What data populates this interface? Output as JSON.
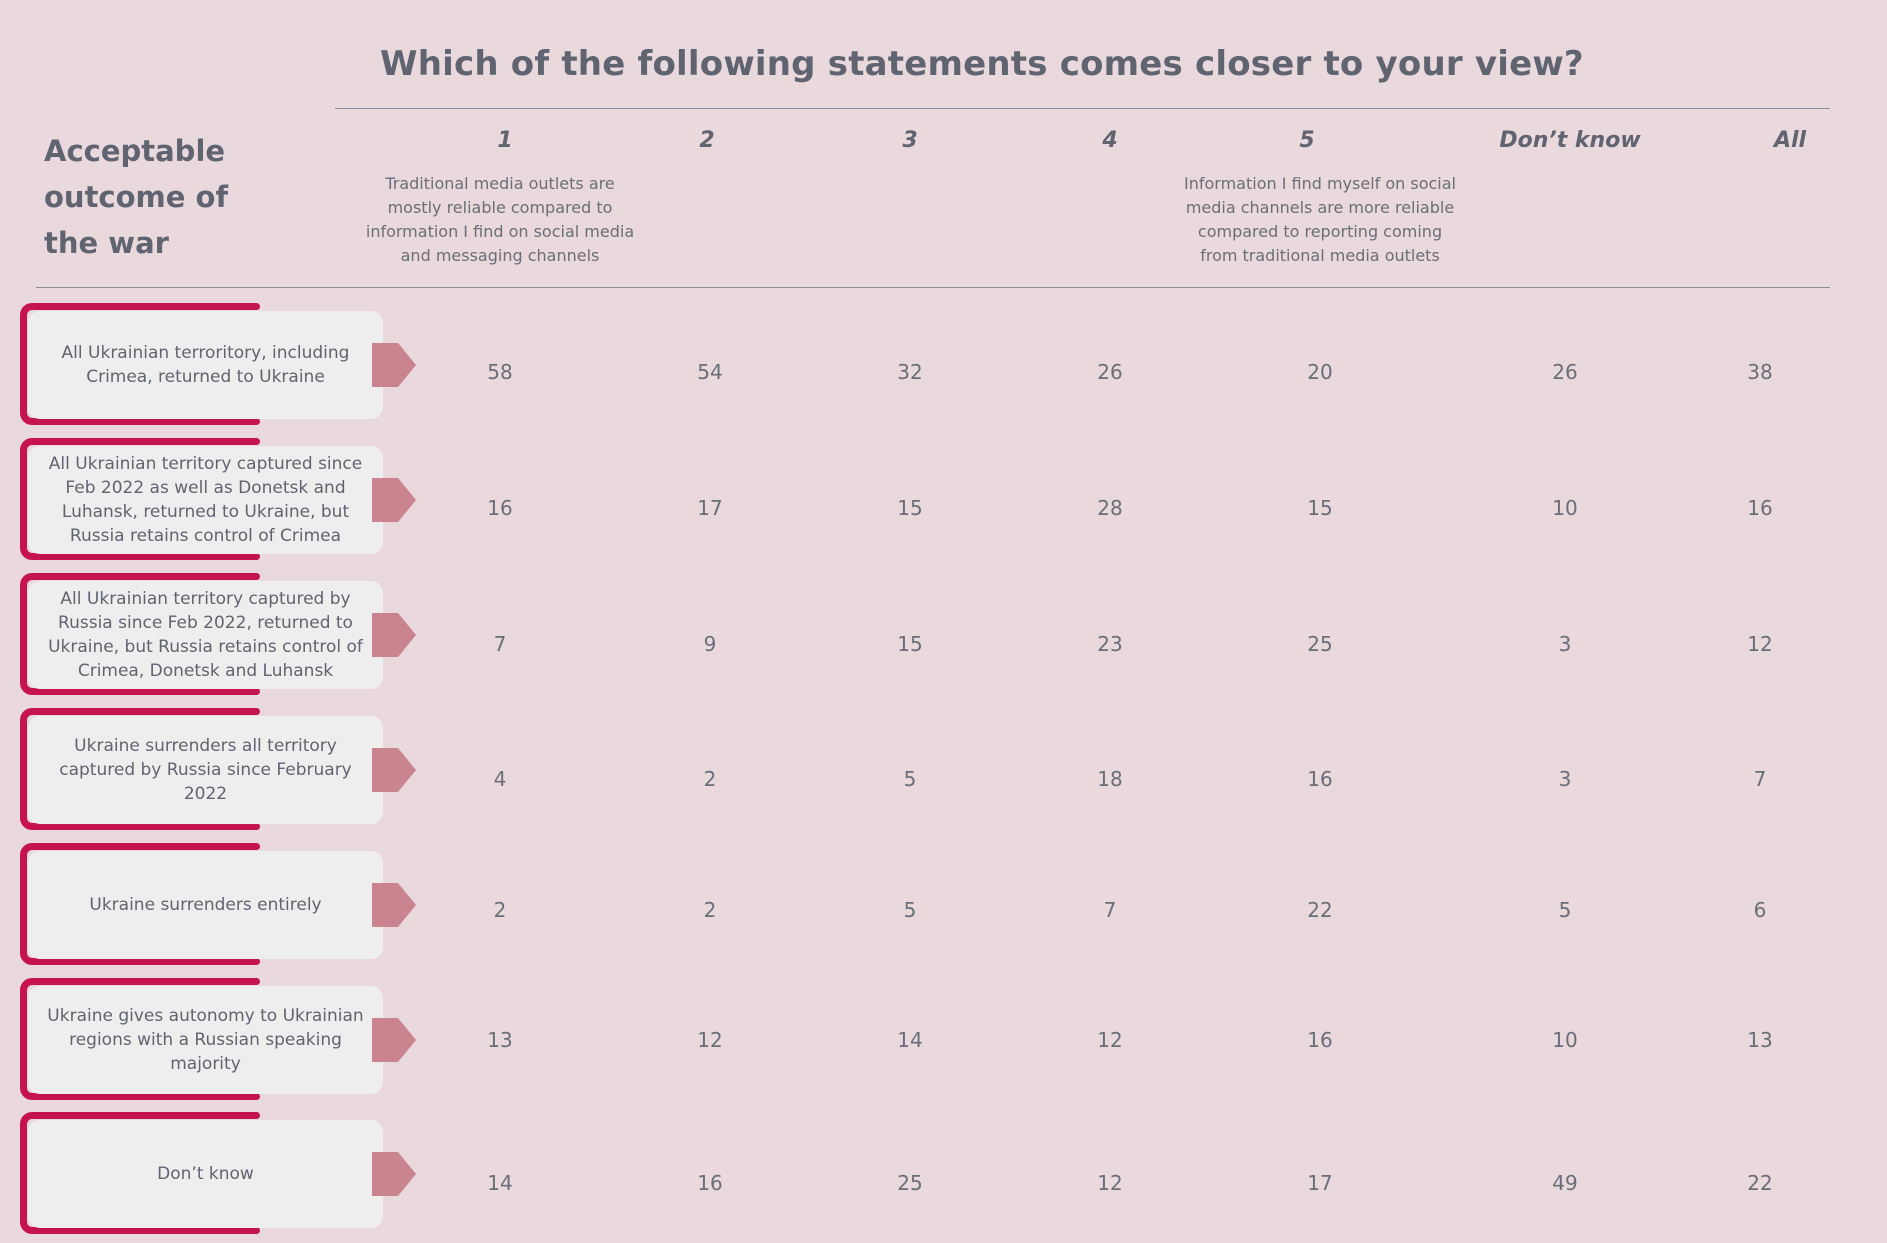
{
  "title": "Which of the following statements comes closer to your view?",
  "row_header": "Acceptable outcome of the war",
  "columns": [
    {
      "label": "1",
      "description": "Traditional media outlets are mostly reliable compared to information I find on social media and messaging channels"
    },
    {
      "label": "2",
      "description": ""
    },
    {
      "label": "3",
      "description": ""
    },
    {
      "label": "4",
      "description": ""
    },
    {
      "label": "5",
      "description": "Information I find myself on social media channels are more reliable compared to reporting coming from traditional media outlets"
    },
    {
      "label": "Don’t know",
      "description": ""
    },
    {
      "label": "All",
      "description": ""
    }
  ],
  "colors": {
    "background": "#e9d8dc",
    "bracket": "#c4134f",
    "card": "#efeeee",
    "arrow": "#c9848f",
    "text": "#5f6470"
  },
  "chart_data": {
    "type": "table",
    "title": "Which of the following statements comes closer to your view?",
    "row_header": "Acceptable outcome of the war",
    "columns": [
      "1",
      "2",
      "3",
      "4",
      "5",
      "Don’t know",
      "All"
    ],
    "rows": [
      {
        "label": "All Ukrainian terroritory, including Crimea, returned to Ukraine",
        "values": [
          58,
          54,
          32,
          26,
          20,
          26,
          38
        ]
      },
      {
        "label": "All Ukrainian territory captured since Feb 2022 as well as Donetsk and Luhansk, returned to Ukraine, but Russia retains control of Crimea",
        "values": [
          16,
          17,
          15,
          28,
          15,
          10,
          16
        ]
      },
      {
        "label": "All Ukrainian territory captured by Russia since Feb 2022, returned to Ukraine, but Russia retains control of Crimea, Donetsk and Luhansk",
        "values": [
          7,
          9,
          15,
          23,
          25,
          3,
          12
        ]
      },
      {
        "label": "Ukraine surrenders all territory captured by Russia since February 2022",
        "values": [
          4,
          2,
          5,
          18,
          16,
          3,
          7
        ]
      },
      {
        "label": "Ukraine surrenders entirely",
        "values": [
          2,
          2,
          5,
          7,
          22,
          5,
          6
        ]
      },
      {
        "label": "Ukraine gives autonomy to Ukrainian regions with a Russian speaking majority",
        "values": [
          13,
          12,
          14,
          12,
          16,
          10,
          13
        ]
      },
      {
        "label": "Don’t know",
        "values": [
          14,
          16,
          25,
          12,
          17,
          49,
          22
        ]
      }
    ]
  }
}
